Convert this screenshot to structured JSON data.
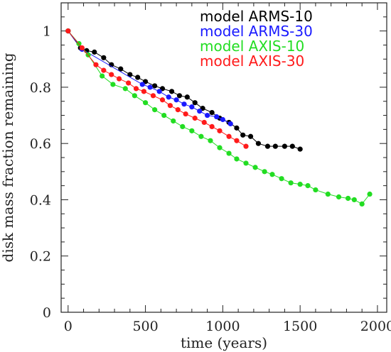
{
  "chart_data": {
    "type": "line",
    "title": "",
    "xlabel": "time (years)",
    "ylabel": "disk mass fraction remaining",
    "xlim": [
      -45,
      2060
    ],
    "ylim": [
      0,
      1.1
    ],
    "xticks": [
      0,
      500,
      1000,
      1500,
      2000
    ],
    "xtick_labels": [
      "0",
      "500",
      "1000",
      "1500",
      "2000"
    ],
    "yticks": [
      0,
      0.2,
      0.4,
      0.6,
      0.8,
      1
    ],
    "ytick_labels": [
      "0",
      "0.2",
      "0.4",
      "0.6",
      "0.8",
      "1"
    ],
    "grid": false,
    "legend_position": "top-right",
    "series": [
      {
        "name": "model ARMS-10",
        "color": "#000000",
        "x": [
          0,
          80,
          120,
          170,
          230,
          280,
          340,
          400,
          450,
          500,
          560,
          610,
          670,
          720,
          770,
          820,
          870,
          930,
          980,
          1040,
          1090,
          1130,
          1180,
          1230,
          1290,
          1340,
          1400,
          1450,
          1500
        ],
        "y": [
          1.0,
          0.94,
          0.93,
          0.925,
          0.905,
          0.88,
          0.865,
          0.845,
          0.835,
          0.82,
          0.805,
          0.795,
          0.785,
          0.77,
          0.765,
          0.745,
          0.725,
          0.71,
          0.69,
          0.675,
          0.655,
          0.63,
          0.625,
          0.6,
          0.59,
          0.59,
          0.59,
          0.59,
          0.58
        ]
      },
      {
        "name": "model ARMS-30",
        "color": "#1a1aff",
        "x": [
          0,
          90,
          480,
          530,
          590,
          650,
          700,
          750,
          800,
          850,
          900,
          960,
          1000,
          1050
        ],
        "y": [
          1.0,
          0.935,
          0.81,
          0.8,
          0.785,
          0.765,
          0.755,
          0.74,
          0.73,
          0.715,
          0.7,
          0.695,
          0.685,
          0.67
        ]
      },
      {
        "name": "model AXIS-10",
        "color": "#22dd22",
        "x": [
          0,
          70,
          130,
          220,
          290,
          370,
          430,
          500,
          560,
          620,
          680,
          740,
          800,
          860,
          920,
          980,
          1040,
          1090,
          1150,
          1210,
          1270,
          1320,
          1380,
          1440,
          1500,
          1550,
          1600,
          1680,
          1750,
          1810,
          1850,
          1900,
          1950
        ],
        "y": [
          1.0,
          0.955,
          0.915,
          0.84,
          0.81,
          0.795,
          0.77,
          0.745,
          0.72,
          0.7,
          0.68,
          0.66,
          0.645,
          0.625,
          0.61,
          0.585,
          0.565,
          0.545,
          0.53,
          0.515,
          0.5,
          0.49,
          0.475,
          0.46,
          0.455,
          0.45,
          0.435,
          0.42,
          0.41,
          0.405,
          0.4,
          0.385,
          0.42
        ]
      },
      {
        "name": "model AXIS-30",
        "color": "#ff1a1a",
        "x": [
          0,
          90,
          180,
          230,
          280,
          330,
          390,
          440,
          490,
          550,
          610,
          660,
          710,
          760,
          820,
          880,
          930,
          980,
          1040,
          1090,
          1150
        ],
        "y": [
          1.0,
          0.94,
          0.88,
          0.86,
          0.845,
          0.83,
          0.815,
          0.795,
          0.785,
          0.77,
          0.755,
          0.735,
          0.72,
          0.705,
          0.69,
          0.675,
          0.66,
          0.645,
          0.625,
          0.61,
          0.59
        ]
      }
    ]
  }
}
